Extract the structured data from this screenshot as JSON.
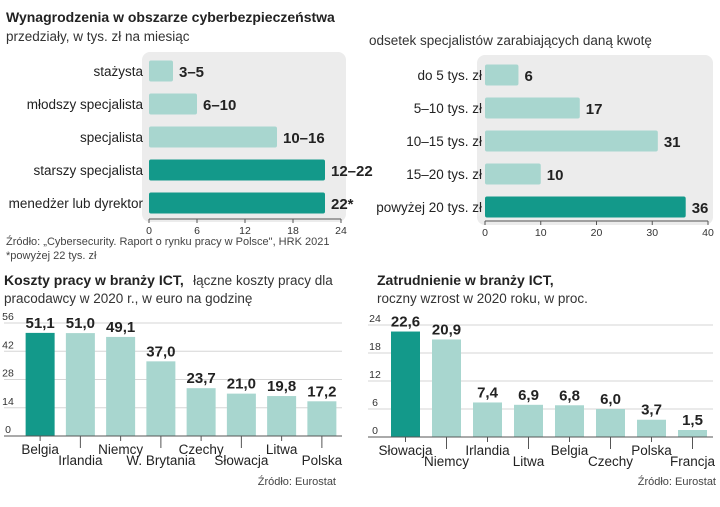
{
  "colors": {
    "bar": "#a8d6cf",
    "highlight": "#13998a",
    "panel": "#ececec",
    "axis": "#555555",
    "text": "#222222"
  },
  "chart_data": [
    {
      "id": "salaries",
      "type": "bar",
      "orientation": "horizontal",
      "title": "Wynagrodzenia w obszarze cyberbezpieczeństwa",
      "subtitle": "przedziały, w tys. zł na miesiąc",
      "categories": [
        "stażysta",
        "młodszy specjalista",
        "specjalista",
        "starszy specjalista",
        "menedżer lub dyrektor"
      ],
      "ranges": [
        [
          0,
          3
        ],
        [
          0,
          6
        ],
        [
          0,
          16
        ],
        [
          0,
          22
        ],
        [
          0,
          22
        ]
      ],
      "labels": [
        "3–5",
        "6–10",
        "10–16",
        "12–22",
        "22*"
      ],
      "highlight": [
        false,
        false,
        false,
        true,
        true
      ],
      "xlim": [
        0,
        24
      ],
      "xticks": [
        "0",
        "6",
        "12",
        "18",
        "24"
      ],
      "source": "Źródło: „Cybersecurity. Raport o rynku pracy w Polsce\", HRK 2021",
      "note": "*powyżej 22 tys. zł"
    },
    {
      "id": "share",
      "type": "bar",
      "orientation": "horizontal",
      "subtitle": "odsetek specjalistów  zarabiających daną kwotę",
      "categories": [
        "do 5 tys. zł",
        "5–10 tys. zł",
        "10–15 tys. zł",
        "15–20 tys. zł",
        "powyżej 20 tys. zł"
      ],
      "values": [
        6,
        17,
        31,
        10,
        36
      ],
      "labels": [
        "6",
        "17",
        "31",
        "10",
        "36"
      ],
      "highlight": [
        false,
        false,
        false,
        false,
        true
      ],
      "xlim": [
        0,
        40
      ],
      "xticks": [
        "0",
        "10",
        "20",
        "30",
        "40"
      ]
    },
    {
      "id": "labour_cost",
      "type": "bar",
      "orientation": "vertical",
      "title": "Koszty pracy w branży ICT,",
      "subtitle_inline": "łączne koszty pracy dla",
      "subtitle2": "pracodawcy w 2020 r., w euro na godzinę",
      "categories": [
        "Belgia",
        "Irlandia",
        "Niemcy",
        "W. Brytania",
        "Czechy",
        "Słowacja",
        "Litwa",
        "Polska"
      ],
      "values": [
        51.1,
        51.0,
        49.1,
        37.0,
        23.7,
        21.0,
        19.8,
        17.2
      ],
      "labels": [
        "51,1",
        "51,0",
        "49,1",
        "37,0",
        "23,7",
        "21,0",
        "19,8",
        "17,2"
      ],
      "highlight": [
        true,
        false,
        false,
        false,
        false,
        false,
        false,
        false
      ],
      "ylim": [
        0,
        56
      ],
      "yticks": [
        "0",
        "14",
        "28",
        "42",
        "56"
      ],
      "source": "Źródło: Eurostat"
    },
    {
      "id": "employment",
      "type": "bar",
      "orientation": "vertical",
      "title": "Zatrudnienie w branży ICT,",
      "subtitle": "roczny wzrost  w 2020 roku, w proc.",
      "categories": [
        "Słowacja",
        "Niemcy",
        "Irlandia",
        "Litwa",
        "Belgia",
        "Czechy",
        "Polska",
        "Francja"
      ],
      "values": [
        22.6,
        20.9,
        7.4,
        6.9,
        6.8,
        6.0,
        3.7,
        1.5
      ],
      "labels": [
        "22,6",
        "20,9",
        "7,4",
        "6,9",
        "6,8",
        "6,0",
        "3,7",
        "1,5"
      ],
      "highlight": [
        true,
        false,
        false,
        false,
        false,
        false,
        false,
        false
      ],
      "ylim": [
        0,
        24
      ],
      "yticks": [
        "0",
        "6",
        "12",
        "18",
        "24"
      ],
      "source": "Źródło: Eurostat"
    }
  ]
}
